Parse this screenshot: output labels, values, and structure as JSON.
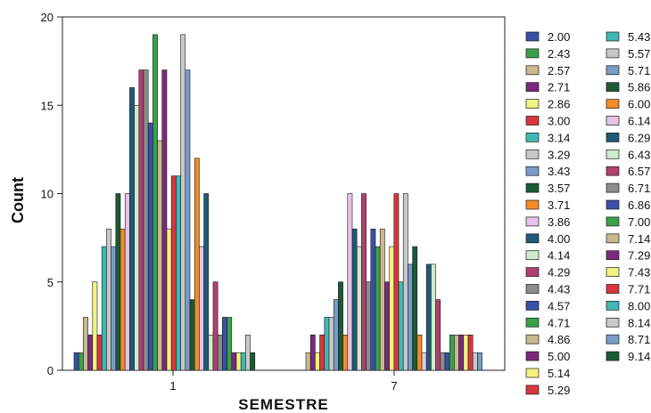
{
  "chart_data": {
    "type": "bar",
    "xlabel": "SEMESTRE",
    "ylabel": "Count",
    "ylim": [
      0,
      20
    ],
    "yticks": [
      0,
      5,
      10,
      15,
      20
    ],
    "categories": [
      "1",
      "7"
    ],
    "legend_position": "right",
    "series": [
      {
        "name": "2.00",
        "color": "#3a4fa8",
        "values": [
          1,
          0
        ]
      },
      {
        "name": "2.43",
        "color": "#3aa14a",
        "values": [
          1,
          0
        ]
      },
      {
        "name": "2.57",
        "color": "#c8b98e",
        "values": [
          3,
          1
        ]
      },
      {
        "name": "2.71",
        "color": "#7a2a7c",
        "values": [
          2,
          2
        ]
      },
      {
        "name": "2.86",
        "color": "#f2f280",
        "values": [
          5,
          1
        ]
      },
      {
        "name": "3.00",
        "color": "#d9363e",
        "values": [
          2,
          2
        ]
      },
      {
        "name": "3.14",
        "color": "#3fb8b4",
        "values": [
          7,
          3
        ]
      },
      {
        "name": "3.29",
        "color": "#c8c8c8",
        "values": [
          8,
          3
        ]
      },
      {
        "name": "3.43",
        "color": "#7a9cc8",
        "values": [
          7,
          4
        ]
      },
      {
        "name": "3.57",
        "color": "#1a5a34",
        "values": [
          10,
          5
        ]
      },
      {
        "name": "3.71",
        "color": "#f28c28",
        "values": [
          8,
          2
        ]
      },
      {
        "name": "3.86",
        "color": "#e6c3e6",
        "values": [
          10,
          10
        ]
      },
      {
        "name": "4.00",
        "color": "#1f5a78",
        "values": [
          16,
          8
        ]
      },
      {
        "name": "4.14",
        "color": "#cdeccd",
        "values": [
          15,
          7
        ]
      },
      {
        "name": "4.29",
        "color": "#b0406e",
        "values": [
          17,
          10
        ]
      },
      {
        "name": "4.43",
        "color": "#8c8c8c",
        "values": [
          17,
          5
        ]
      },
      {
        "name": "4.57",
        "color": "#3a4fa8",
        "values": [
          14,
          8
        ]
      },
      {
        "name": "4.71",
        "color": "#3aa14a",
        "values": [
          19,
          7
        ]
      },
      {
        "name": "4.86",
        "color": "#c8b98e",
        "values": [
          13,
          8
        ]
      },
      {
        "name": "5.00",
        "color": "#7a2a7c",
        "values": [
          17,
          5
        ]
      },
      {
        "name": "5.14",
        "color": "#f2f280",
        "values": [
          8,
          7
        ]
      },
      {
        "name": "5.29",
        "color": "#d9363e",
        "values": [
          11,
          10
        ]
      },
      {
        "name": "5.43",
        "color": "#3fb8b4",
        "values": [
          11,
          5
        ]
      },
      {
        "name": "5.57",
        "color": "#c8c8c8",
        "values": [
          19,
          10
        ]
      },
      {
        "name": "5.71",
        "color": "#7a9cc8",
        "values": [
          17,
          6
        ]
      },
      {
        "name": "5.86",
        "color": "#1a5a34",
        "values": [
          4,
          7
        ]
      },
      {
        "name": "6.00",
        "color": "#f28c28",
        "values": [
          12,
          2
        ]
      },
      {
        "name": "6.14",
        "color": "#e6c3e6",
        "values": [
          7,
          1
        ]
      },
      {
        "name": "6.29",
        "color": "#1f5a78",
        "values": [
          10,
          6
        ]
      },
      {
        "name": "6.43",
        "color": "#cdeccd",
        "values": [
          2,
          6
        ]
      },
      {
        "name": "6.57",
        "color": "#b0406e",
        "values": [
          5,
          4
        ]
      },
      {
        "name": "6.71",
        "color": "#8c8c8c",
        "values": [
          2,
          1
        ]
      },
      {
        "name": "6.86",
        "color": "#3a4fa8",
        "values": [
          3,
          1
        ]
      },
      {
        "name": "7.00",
        "color": "#3aa14a",
        "values": [
          3,
          2
        ]
      },
      {
        "name": "7.14",
        "color": "#c8b98e",
        "values": [
          0,
          2
        ]
      },
      {
        "name": "7.29",
        "color": "#7a2a7c",
        "values": [
          1,
          2
        ]
      },
      {
        "name": "7.43",
        "color": "#f2f280",
        "values": [
          1,
          2
        ]
      },
      {
        "name": "7.71",
        "color": "#d9363e",
        "values": [
          0,
          2
        ]
      },
      {
        "name": "8.00",
        "color": "#3fb8b4",
        "values": [
          1,
          0
        ]
      },
      {
        "name": "8.14",
        "color": "#c8c8c8",
        "values": [
          2,
          1
        ]
      },
      {
        "name": "8.71",
        "color": "#7a9cc8",
        "values": [
          0,
          1
        ]
      },
      {
        "name": "9.14",
        "color": "#1a5a34",
        "values": [
          1,
          0
        ]
      }
    ]
  }
}
